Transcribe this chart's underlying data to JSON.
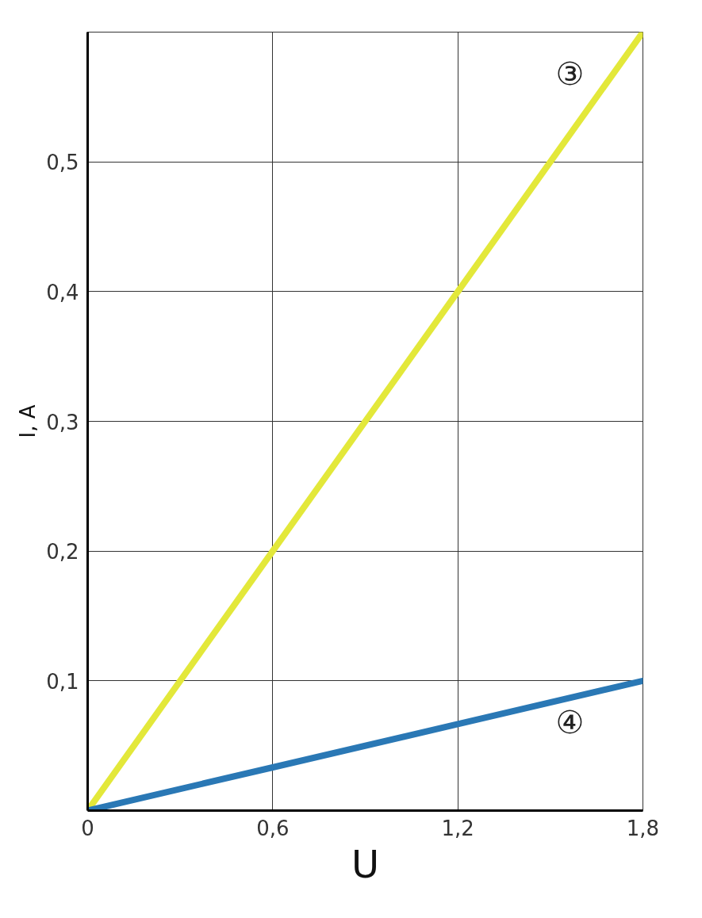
{
  "chart_data": {
    "type": "line",
    "xlabel": "U",
    "ylabel": "I, A",
    "x": [
      0,
      0.6,
      1.2,
      1.8
    ],
    "series": [
      {
        "name": "③",
        "color": "#e3e83a",
        "values": [
          0,
          0.2,
          0.4,
          0.6
        ]
      },
      {
        "name": "④",
        "color": "#2a78b5",
        "values": [
          0,
          0.0333,
          0.0667,
          0.1
        ]
      }
    ],
    "xlim": [
      0,
      1.8
    ],
    "ylim": [
      0,
      0.6
    ],
    "xticks": [
      {
        "value": 0,
        "label": "0"
      },
      {
        "value": 0.6,
        "label": "0,6"
      },
      {
        "value": 1.2,
        "label": "1,2"
      },
      {
        "value": 1.8,
        "label": "1,8"
      }
    ],
    "yticks": [
      {
        "value": 0.1,
        "label": "0,1"
      },
      {
        "value": 0.2,
        "label": "0,2"
      },
      {
        "value": 0.3,
        "label": "0,3"
      },
      {
        "value": 0.4,
        "label": "0,4"
      },
      {
        "value": 0.5,
        "label": "0,5"
      },
      {
        "value": 0.6,
        "label": null
      }
    ],
    "grid": true
  }
}
